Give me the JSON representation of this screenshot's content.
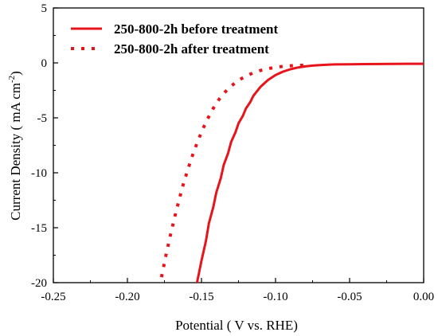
{
  "chart_data": {
    "type": "line",
    "xlabel": "Potential ( V vs. RHE)",
    "ylabel_main": "Current Density ( mA cm",
    "ylabel_sup": "-2",
    "ylabel_tail": ")",
    "xlim": [
      -0.25,
      0.0
    ],
    "ylim": [
      -20,
      5
    ],
    "x_ticks": [
      -0.25,
      -0.2,
      -0.15,
      -0.1,
      -0.05,
      0.0
    ],
    "x_tick_labels": [
      "-0.25",
      "-0.20",
      "-0.15",
      "-0.10",
      "-0.05",
      "0.00"
    ],
    "y_ticks": [
      -20,
      -15,
      -10,
      -5,
      0,
      5
    ],
    "y_tick_labels": [
      "-20",
      "-15",
      "-10",
      "-5",
      "0",
      "5"
    ],
    "grid": false,
    "legend_position": "top-left",
    "series": [
      {
        "name": "250-800-2h before treatment",
        "style": "solid",
        "color": "#e8141b",
        "x": [
          -0.153,
          -0.15,
          -0.147,
          -0.145,
          -0.142,
          -0.14,
          -0.137,
          -0.135,
          -0.132,
          -0.13,
          -0.127,
          -0.125,
          -0.122,
          -0.12,
          -0.117,
          -0.115,
          -0.11,
          -0.105,
          -0.1,
          -0.095,
          -0.09,
          -0.085,
          -0.08,
          -0.075,
          -0.07,
          -0.065,
          -0.06,
          -0.05,
          -0.04,
          -0.03,
          -0.02,
          -0.01,
          0.0
        ],
        "y": [
          -20.0,
          -18.0,
          -16.2,
          -14.6,
          -13.1,
          -11.8,
          -10.5,
          -9.3,
          -8.2,
          -7.2,
          -6.3,
          -5.5,
          -4.8,
          -4.15,
          -3.55,
          -3.0,
          -2.15,
          -1.55,
          -1.1,
          -0.8,
          -0.58,
          -0.42,
          -0.32,
          -0.25,
          -0.2,
          -0.16,
          -0.14,
          -0.12,
          -0.11,
          -0.1,
          -0.09,
          -0.08,
          -0.08
        ]
      },
      {
        "name": "250-800-2h after treatment",
        "style": "dotted",
        "color": "#e8141b",
        "x": [
          -0.177,
          -0.174,
          -0.171,
          -0.168,
          -0.165,
          -0.162,
          -0.159,
          -0.156,
          -0.153,
          -0.15,
          -0.147,
          -0.144,
          -0.141,
          -0.138,
          -0.135,
          -0.132,
          -0.128,
          -0.124,
          -0.12,
          -0.115,
          -0.11,
          -0.105,
          -0.1,
          -0.095,
          -0.09,
          -0.085,
          -0.08
        ],
        "y": [
          -19.5,
          -17.5,
          -15.7,
          -14.0,
          -12.4,
          -10.9,
          -9.6,
          -8.4,
          -7.3,
          -6.3,
          -5.4,
          -4.6,
          -3.9,
          -3.3,
          -2.8,
          -2.35,
          -1.9,
          -1.5,
          -1.2,
          -0.9,
          -0.68,
          -0.52,
          -0.4,
          -0.32,
          -0.26,
          -0.22,
          -0.2
        ]
      }
    ]
  }
}
